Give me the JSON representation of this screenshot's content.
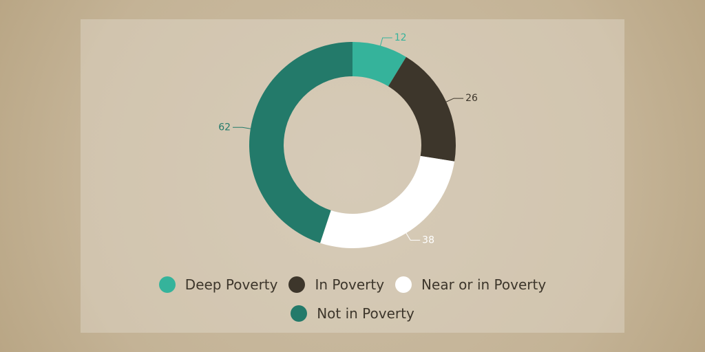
{
  "chart_data": {
    "type": "donut",
    "categories": [
      "Deep Poverty",
      "In Poverty",
      "Near or in Poverty",
      "Not in Poverty"
    ],
    "values": [
      12,
      26,
      38,
      62
    ],
    "colors": [
      "#35b39b",
      "#3d362b",
      "#ffffff",
      "#237a6a"
    ]
  }
}
